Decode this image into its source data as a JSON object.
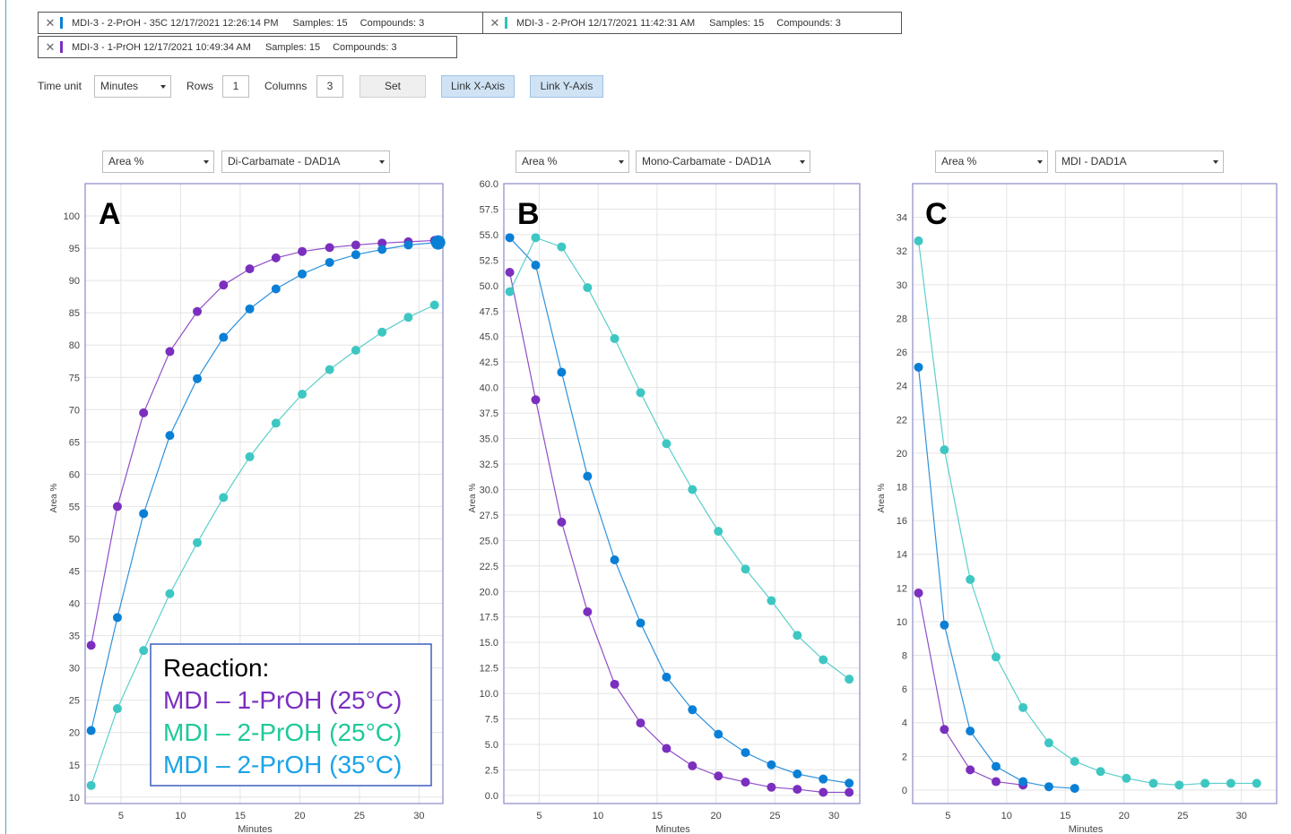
{
  "header": {
    "datasets": [
      {
        "label": "MDI-3 - 2-PrOH - 35C 12/17/2021 12:26:14 PM",
        "samples": "Samples: 15",
        "compounds": "Compounds: 3",
        "color": "#0078d4"
      },
      {
        "label": "MDI-3 - 2-PrOH 12/17/2021 11:42:31 AM",
        "samples": "Samples: 15",
        "compounds": "Compounds: 3",
        "color": "#2ec4b6"
      },
      {
        "label": "MDI-3 - 1-PrOH 12/17/2021 10:49:34 AM",
        "samples": "Samples: 15",
        "compounds": "Compounds: 3",
        "color": "#7b2fbe"
      }
    ]
  },
  "toolbar": {
    "time_unit_label": "Time unit",
    "time_unit_value": "Minutes",
    "rows_label": "Rows",
    "rows_value": "1",
    "columns_label": "Columns",
    "columns_value": "3",
    "set_label": "Set",
    "link_x_label": "Link X-Axis",
    "link_y_label": "Link Y-Axis"
  },
  "colors": {
    "purple": "#7b2fbe",
    "teal": "#3ec7c2",
    "blue": "#0a7fd6"
  },
  "legend": {
    "title": "Reaction:",
    "items": [
      {
        "text": "MDI – 1-PrOH (25°C)",
        "color": "#7b2fbe"
      },
      {
        "text": "MDI – 2-PrOH (25°C)",
        "color": "#1fc99a"
      },
      {
        "text": "MDI – 2-PrOH (35°C)",
        "color": "#1aa3e8"
      }
    ]
  },
  "chart_data": [
    {
      "type": "line",
      "panel_letter": "A",
      "metric_select": "Area %",
      "compound_select": "Di-Carbamate - DAD1A",
      "xlabel": "Minutes",
      "ylabel": "Area %",
      "xlim": [
        2,
        32
      ],
      "ylim": [
        9,
        105
      ],
      "xticks": [
        5,
        10,
        15,
        20,
        25,
        30
      ],
      "yticks": [
        10,
        15,
        20,
        25,
        30,
        35,
        40,
        45,
        50,
        55,
        60,
        65,
        70,
        75,
        80,
        85,
        90,
        95,
        100
      ],
      "ytick_labels": [
        "10",
        "15",
        "20",
        "25",
        "30",
        "35",
        "40",
        "45",
        "50",
        "55",
        "60",
        "65",
        "70",
        "75",
        "80",
        "85",
        "90",
        "95",
        "100"
      ],
      "series": [
        {
          "color": "#7b2fbe",
          "x": [
            2.5,
            4.7,
            6.9,
            9.1,
            11.4,
            13.6,
            15.8,
            18.0,
            20.2,
            22.5,
            24.7,
            26.9,
            29.1,
            31.3
          ],
          "y": [
            33.5,
            55,
            69.5,
            79,
            85.2,
            89.3,
            91.8,
            93.5,
            94.5,
            95.1,
            95.5,
            95.8,
            96.0,
            96.2
          ]
        },
        {
          "color": "#0a7fd6",
          "x": [
            2.5,
            4.7,
            6.9,
            9.1,
            11.4,
            13.6,
            15.8,
            18.0,
            20.2,
            22.5,
            24.7,
            26.9,
            29.1,
            31.6
          ],
          "y": [
            20.3,
            37.8,
            53.9,
            66,
            74.8,
            81.2,
            85.6,
            88.7,
            91,
            92.8,
            94.0,
            94.8,
            95.5,
            95.9
          ]
        },
        {
          "color": "#3ec7c2",
          "x": [
            2.5,
            4.7,
            6.9,
            9.1,
            11.4,
            13.6,
            15.8,
            18.0,
            20.2,
            22.5,
            24.7,
            26.9,
            29.1,
            31.3
          ],
          "y": [
            11.8,
            23.7,
            32.7,
            41.5,
            49.4,
            56.4,
            62.7,
            67.9,
            72.4,
            76.2,
            79.2,
            82.0,
            84.3,
            86.2
          ]
        }
      ]
    },
    {
      "type": "line",
      "panel_letter": "B",
      "metric_select": "Area %",
      "compound_select": "Mono-Carbamate - DAD1A",
      "xlabel": "Minutes",
      "ylabel": "Area %",
      "xlim": [
        2,
        32.2
      ],
      "ylim": [
        -0.8,
        60
      ],
      "xticks": [
        5,
        10,
        15,
        20,
        25,
        30
      ],
      "yticks": [
        0,
        2.5,
        5,
        7.5,
        10,
        12.5,
        15,
        17.5,
        20,
        22.5,
        25,
        27.5,
        30,
        32.5,
        35,
        37.5,
        40,
        42.5,
        45,
        47.5,
        50,
        52.5,
        55,
        57.5,
        60
      ],
      "ytick_labels": [
        "0.0",
        "2.5",
        "5.0",
        "7.5",
        "10.0",
        "12.5",
        "15.0",
        "17.5",
        "20.0",
        "22.5",
        "25.0",
        "27.5",
        "30.0",
        "32.5",
        "35.0",
        "37.5",
        "40.0",
        "42.5",
        "45.0",
        "47.5",
        "50.0",
        "52.5",
        "55.0",
        "57.5",
        "60.0"
      ],
      "series": [
        {
          "color": "#7b2fbe",
          "x": [
            2.5,
            4.7,
            6.9,
            9.1,
            11.4,
            13.6,
            15.8,
            18.0,
            20.2,
            22.5,
            24.7,
            26.9,
            29.1,
            31.3
          ],
          "y": [
            51.3,
            38.8,
            26.8,
            18.0,
            10.9,
            7.1,
            4.6,
            2.9,
            1.9,
            1.3,
            0.8,
            0.6,
            0.3,
            0.3
          ]
        },
        {
          "color": "#0a7fd6",
          "x": [
            2.5,
            4.7,
            6.9,
            9.1,
            11.4,
            13.6,
            15.8,
            18.0,
            20.2,
            22.5,
            24.7,
            26.9,
            29.1,
            31.3
          ],
          "y": [
            54.7,
            52.0,
            41.5,
            31.3,
            23.1,
            16.9,
            11.6,
            8.4,
            6.0,
            4.2,
            3.0,
            2.1,
            1.6,
            1.2
          ]
        },
        {
          "color": "#3ec7c2",
          "x": [
            2.5,
            4.7,
            6.9,
            9.1,
            11.4,
            13.6,
            15.8,
            18.0,
            20.2,
            22.5,
            24.7,
            26.9,
            29.1,
            31.3
          ],
          "y": [
            49.4,
            54.7,
            53.8,
            49.8,
            44.8,
            39.5,
            34.5,
            30.0,
            25.9,
            22.2,
            19.1,
            15.7,
            13.3,
            11.4
          ]
        }
      ]
    },
    {
      "type": "line",
      "panel_letter": "C",
      "metric_select": "Area %",
      "compound_select": "MDI - DAD1A",
      "xlabel": "Minutes",
      "ylabel": "Area %",
      "xlim": [
        2,
        33
      ],
      "ylim": [
        -0.8,
        36
      ],
      "xticks": [
        5,
        10,
        15,
        20,
        25,
        30
      ],
      "yticks": [
        0,
        2,
        4,
        6,
        8,
        10,
        12,
        14,
        16,
        18,
        20,
        22,
        24,
        26,
        28,
        30,
        32,
        34
      ],
      "ytick_labels": [
        "0",
        "2",
        "4",
        "6",
        "8",
        "10",
        "12",
        "14",
        "16",
        "18",
        "20",
        "22",
        "24",
        "26",
        "28",
        "30",
        "32",
        "34"
      ],
      "series": [
        {
          "color": "#7b2fbe",
          "x": [
            2.5,
            4.7,
            6.9,
            9.1,
            11.4
          ],
          "y": [
            11.7,
            3.6,
            1.2,
            0.5,
            0.3
          ]
        },
        {
          "color": "#0a7fd6",
          "x": [
            2.5,
            4.7,
            6.9,
            9.1,
            11.4,
            13.6,
            15.8
          ],
          "y": [
            25.1,
            9.8,
            3.5,
            1.4,
            0.5,
            0.2,
            0.1
          ]
        },
        {
          "color": "#3ec7c2",
          "x": [
            2.5,
            4.7,
            6.9,
            9.1,
            11.4,
            13.6,
            15.8,
            18.0,
            20.2,
            22.5,
            24.7,
            26.9,
            29.1,
            31.3
          ],
          "y": [
            32.6,
            20.2,
            12.5,
            7.9,
            4.9,
            2.8,
            1.7,
            1.1,
            0.7,
            0.4,
            0.3,
            0.4,
            0.4,
            0.4
          ]
        }
      ]
    }
  ]
}
